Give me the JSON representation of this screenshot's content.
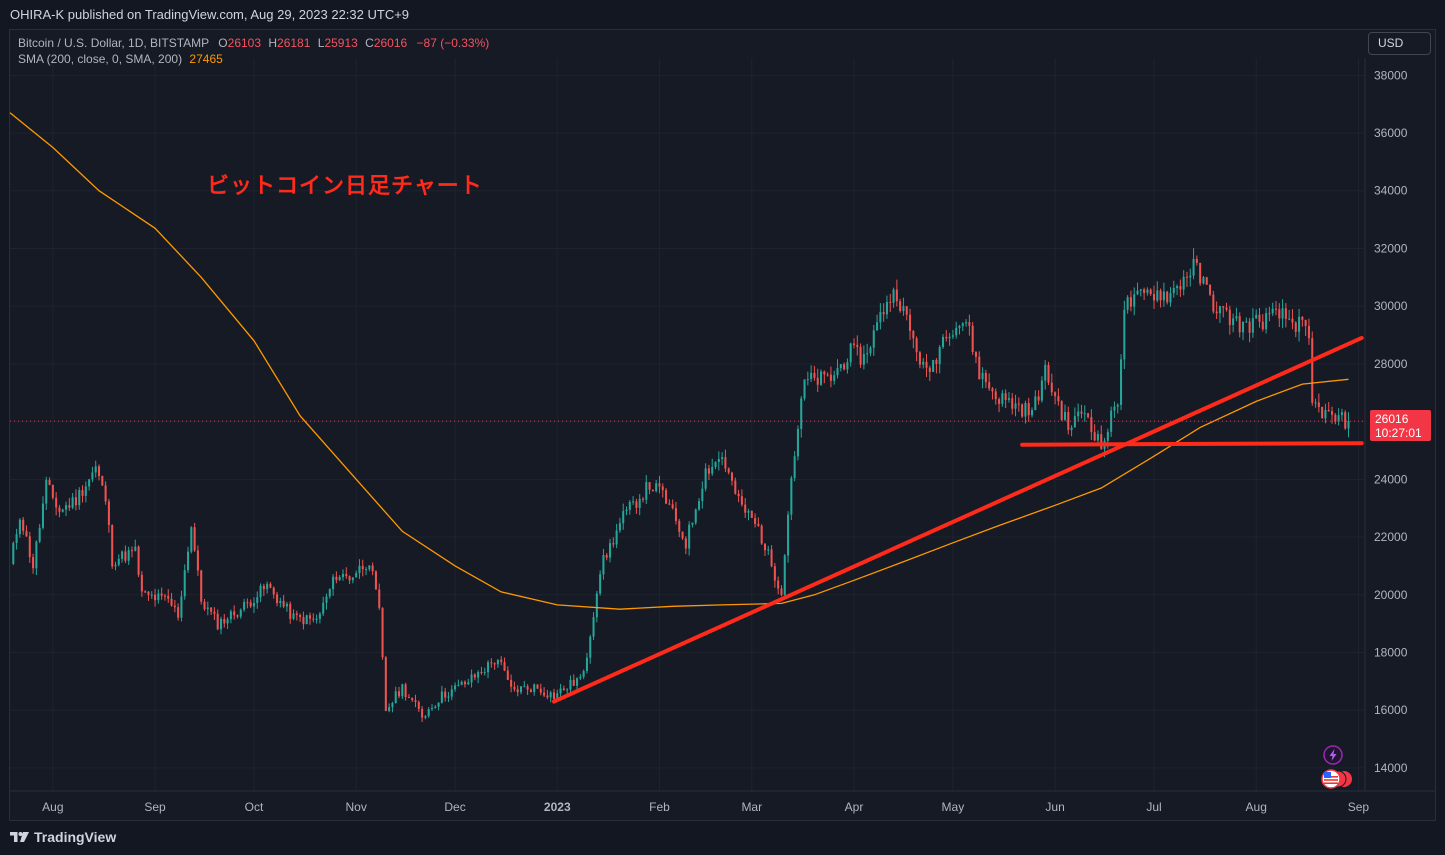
{
  "header": {
    "published_text": "OHIRA-K published on TradingView.com, Aug 29, 2023 22:32 UTC+9"
  },
  "legend": {
    "symbol": "Bitcoin / U.S. Dollar, 1D, BITSTAMP",
    "open_label": "O",
    "open": "26103",
    "high_label": "H",
    "high": "26181",
    "low_label": "L",
    "low": "25913",
    "close_label": "C",
    "close": "26016",
    "change": "−87 (−0.33%)",
    "sma_label": "SMA (200, close, 0, SMA, 200)",
    "sma_value": "27465"
  },
  "currency_button": "USD",
  "annotation": "ビットコイン日足チャート",
  "price_tag": {
    "price": "26016",
    "countdown": "10:27:01"
  },
  "footer": {
    "brand": "TradingView"
  },
  "colors": {
    "up": "#26a69a",
    "down": "#ef5350",
    "sma": "#ff9800",
    "drawing": "#ff2a1a",
    "background": "#161a25",
    "price_tag": "#f23645"
  },
  "icons": [
    "lightning-icon",
    "us-flag-icon"
  ],
  "chart_data": {
    "type": "candlestick",
    "title": "",
    "symbol": "BTCUSD",
    "interval": "1D",
    "x_range": [
      "2022-07-19",
      "2023-09-03"
    ],
    "ylim": [
      13200,
      38600
    ],
    "y_ticks": [
      14000,
      16000,
      18000,
      20000,
      22000,
      24000,
      26000,
      28000,
      30000,
      32000,
      34000,
      36000,
      38000
    ],
    "x_ticks": [
      {
        "label": "Aug",
        "date": "2022-08-01"
      },
      {
        "label": "Sep",
        "date": "2022-09-01"
      },
      {
        "label": "Oct",
        "date": "2022-10-01"
      },
      {
        "label": "Nov",
        "date": "2022-11-01"
      },
      {
        "label": "Dec",
        "date": "2022-12-01"
      },
      {
        "label": "2023",
        "date": "2023-01-01",
        "bold": true
      },
      {
        "label": "Feb",
        "date": "2023-02-01"
      },
      {
        "label": "Mar",
        "date": "2023-03-01"
      },
      {
        "label": "Apr",
        "date": "2023-04-01"
      },
      {
        "label": "May",
        "date": "2023-05-01"
      },
      {
        "label": "Jun",
        "date": "2023-06-01"
      },
      {
        "label": "Jul",
        "date": "2023-07-01"
      },
      {
        "label": "Aug",
        "date": "2023-08-01"
      },
      {
        "label": "Sep",
        "date": "2023-09-01"
      }
    ],
    "close_series": [
      [
        "2022-07-19",
        21000
      ],
      [
        "2022-07-22",
        22800
      ],
      [
        "2022-07-26",
        21000
      ],
      [
        "2022-07-30",
        23800
      ],
      [
        "2022-08-03",
        22900
      ],
      [
        "2022-08-08",
        23300
      ],
      [
        "2022-08-14",
        24400
      ],
      [
        "2022-08-17",
        23300
      ],
      [
        "2022-08-19",
        21200
      ],
      [
        "2022-08-26",
        21500
      ],
      [
        "2022-08-28",
        20000
      ],
      [
        "2022-09-05",
        19800
      ],
      [
        "2022-09-08",
        19300
      ],
      [
        "2022-09-12",
        22400
      ],
      [
        "2022-09-15",
        19800
      ],
      [
        "2022-09-20",
        19000
      ],
      [
        "2022-09-27",
        19500
      ],
      [
        "2022-10-05",
        20300
      ],
      [
        "2022-10-13",
        19200
      ],
      [
        "2022-10-20",
        19100
      ],
      [
        "2022-10-26",
        20700
      ],
      [
        "2022-10-30",
        20600
      ],
      [
        "2022-11-05",
        21200
      ],
      [
        "2022-11-08",
        19400
      ],
      [
        "2022-11-10",
        16000
      ],
      [
        "2022-11-15",
        16800
      ],
      [
        "2022-11-21",
        15800
      ],
      [
        "2022-11-27",
        16500
      ],
      [
        "2022-12-05",
        17000
      ],
      [
        "2022-12-14",
        17800
      ],
      [
        "2022-12-18",
        16700
      ],
      [
        "2022-12-25",
        16800
      ],
      [
        "2022-12-31",
        16500
      ],
      [
        "2023-01-09",
        17200
      ],
      [
        "2023-01-14",
        20900
      ],
      [
        "2023-01-21",
        22700
      ],
      [
        "2023-01-29",
        23800
      ],
      [
        "2023-02-02",
        23500
      ],
      [
        "2023-02-09",
        21800
      ],
      [
        "2023-02-15",
        24300
      ],
      [
        "2023-02-20",
        24800
      ],
      [
        "2023-02-25",
        23200
      ],
      [
        "2023-03-03",
        22300
      ],
      [
        "2023-03-09",
        20400
      ],
      [
        "2023-03-10",
        20200
      ],
      [
        "2023-03-13",
        24100
      ],
      [
        "2023-03-17",
        27400
      ],
      [
        "2023-03-25",
        27500
      ],
      [
        "2023-03-31",
        28400
      ],
      [
        "2023-04-04",
        28200
      ],
      [
        "2023-04-11",
        30200
      ],
      [
        "2023-04-14",
        30500
      ],
      [
        "2023-04-19",
        28800
      ],
      [
        "2023-04-23",
        27600
      ],
      [
        "2023-04-26",
        28300
      ],
      [
        "2023-04-29",
        29200
      ],
      [
        "2023-05-05",
        29500
      ],
      [
        "2023-05-09",
        27700
      ],
      [
        "2023-05-14",
        26900
      ],
      [
        "2023-05-25",
        26300
      ],
      [
        "2023-05-29",
        27700
      ],
      [
        "2023-06-05",
        25800
      ],
      [
        "2023-06-10",
        26400
      ],
      [
        "2023-06-15",
        25100
      ],
      [
        "2023-06-20",
        26800
      ],
      [
        "2023-06-22",
        30000
      ],
      [
        "2023-06-30",
        30500
      ],
      [
        "2023-07-06",
        30400
      ],
      [
        "2023-07-13",
        31400
      ],
      [
        "2023-07-20",
        29900
      ],
      [
        "2023-07-28",
        29300
      ],
      [
        "2023-08-08",
        29700
      ],
      [
        "2023-08-15",
        29300
      ],
      [
        "2023-08-17",
        28700
      ],
      [
        "2023-08-18",
        26600
      ],
      [
        "2023-08-24",
        26100
      ],
      [
        "2023-08-29",
        26016
      ]
    ],
    "sma_200": [
      [
        "2022-07-19",
        36700
      ],
      [
        "2022-08-01",
        35500
      ],
      [
        "2022-08-15",
        34000
      ],
      [
        "2022-09-01",
        32700
      ],
      [
        "2022-09-15",
        31000
      ],
      [
        "2022-10-01",
        28800
      ],
      [
        "2022-10-15",
        26200
      ],
      [
        "2022-11-01",
        24000
      ],
      [
        "2022-11-15",
        22200
      ],
      [
        "2022-12-01",
        21000
      ],
      [
        "2022-12-15",
        20100
      ],
      [
        "2023-01-01",
        19650
      ],
      [
        "2023-01-20",
        19500
      ],
      [
        "2023-02-05",
        19600
      ],
      [
        "2023-02-20",
        19650
      ],
      [
        "2023-03-10",
        19700
      ],
      [
        "2023-03-20",
        20000
      ],
      [
        "2023-04-01",
        20500
      ],
      [
        "2023-04-15",
        21100
      ],
      [
        "2023-05-01",
        21800
      ],
      [
        "2023-05-15",
        22400
      ],
      [
        "2023-06-01",
        23100
      ],
      [
        "2023-06-15",
        23700
      ],
      [
        "2023-07-01",
        24800
      ],
      [
        "2023-07-15",
        25800
      ],
      [
        "2023-08-01",
        26700
      ],
      [
        "2023-08-15",
        27300
      ],
      [
        "2023-08-29",
        27465
      ]
    ],
    "trendlines": [
      {
        "from": [
          "2022-12-31",
          16300
        ],
        "to": [
          "2023-09-02",
          28900
        ]
      },
      {
        "from": [
          "2023-05-22",
          25200
        ],
        "to": [
          "2023-09-02",
          25250
        ]
      }
    ],
    "last_price": 26016
  }
}
